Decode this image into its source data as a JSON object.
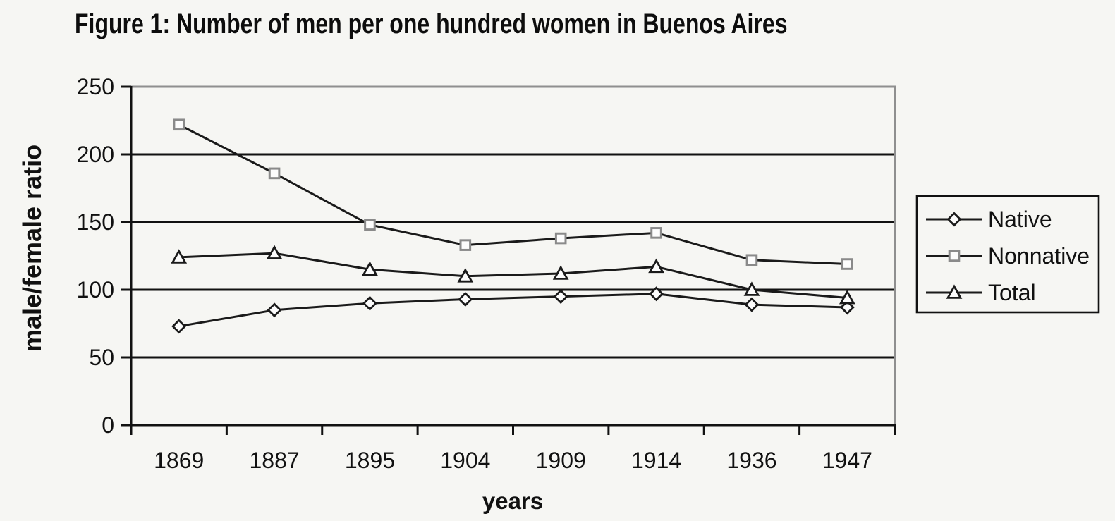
{
  "figure": {
    "title": "Figure 1: Number of men per one hundred women in Buenos Aires"
  },
  "chart_data": {
    "type": "line",
    "title": "Figure 1: Number of men per one hundred women in Buenos Aires",
    "xlabel": "years",
    "ylabel": "male/female ratio",
    "categories": [
      "1869",
      "1887",
      "1895",
      "1904",
      "1909",
      "1914",
      "1936",
      "1947"
    ],
    "series": [
      {
        "name": "Native",
        "marker": "diamond",
        "marker_color": "#1a1a1a",
        "values": [
          73,
          85,
          90,
          93,
          95,
          97,
          89,
          87
        ]
      },
      {
        "name": "Nonnative",
        "marker": "square",
        "marker_color": "#8a8a8a",
        "values": [
          222,
          186,
          148,
          133,
          138,
          142,
          122,
          119
        ]
      },
      {
        "name": "Total",
        "marker": "triangle",
        "marker_color": "#1a1a1a",
        "values": [
          124,
          127,
          115,
          110,
          112,
          117,
          100,
          94
        ]
      }
    ],
    "ylim": [
      0,
      250
    ],
    "y_ticks": [
      0,
      50,
      100,
      150,
      200,
      250
    ],
    "grid": "horizontal-black-lines",
    "legend_position": "right",
    "legend_labels": [
      "Native",
      "Nonnative",
      "Total"
    ],
    "line_color": "#1a1a1a",
    "colors": {
      "background": "#f6f6f3",
      "grid": "#111111",
      "border_gray": "#8f8f8f",
      "axis": "#111111",
      "text": "#111111",
      "marker_fill": "#fcfcfc",
      "legend_border": "#111111"
    }
  }
}
